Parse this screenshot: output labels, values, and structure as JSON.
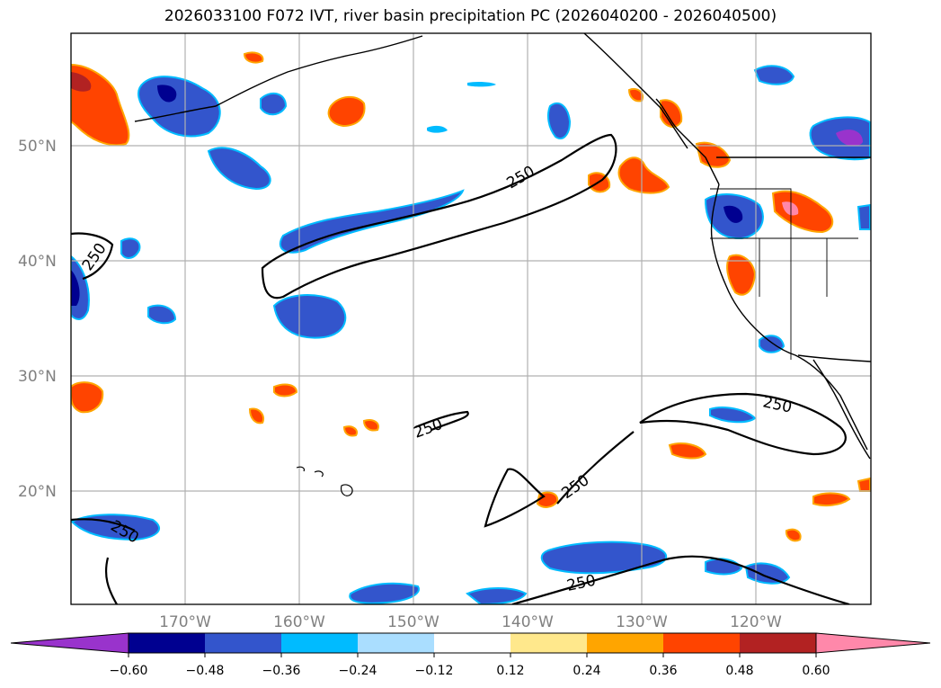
{
  "title": "2026033100 F072 IVT, river basin precipitation PC (2026040200 - 2026040500)",
  "map": {
    "lon_range": [
      -180,
      -110
    ],
    "lat_range": [
      10,
      60
    ],
    "grid_lons": [
      -170,
      -160,
      -150,
      -140,
      -130,
      -120
    ],
    "grid_lats": [
      20,
      30,
      40,
      50
    ],
    "lon_labels": [
      "170°W",
      "160°W",
      "150°W",
      "140°W",
      "130°W",
      "120°W"
    ],
    "lat_labels": [
      "20°N",
      "30°N",
      "40°N",
      "50°N"
    ],
    "ivt_contour_level": "250",
    "contour_labels": [
      "250",
      "250",
      "250",
      "250",
      "250",
      "250",
      "250"
    ]
  },
  "colorbar": {
    "colors": [
      "#9933cc",
      "#000090",
      "#3355cc",
      "#00bbff",
      "#aadeff",
      "#ffffff",
      "#ffe88c",
      "#ffa500",
      "#ff4400",
      "#b22222",
      "#ff88aa"
    ],
    "tick_labels": [
      "−0.60",
      "−0.48",
      "−0.36",
      "−0.24",
      "−0.12",
      "0.12",
      "0.24",
      "0.36",
      "0.48",
      "0.60"
    ]
  }
}
